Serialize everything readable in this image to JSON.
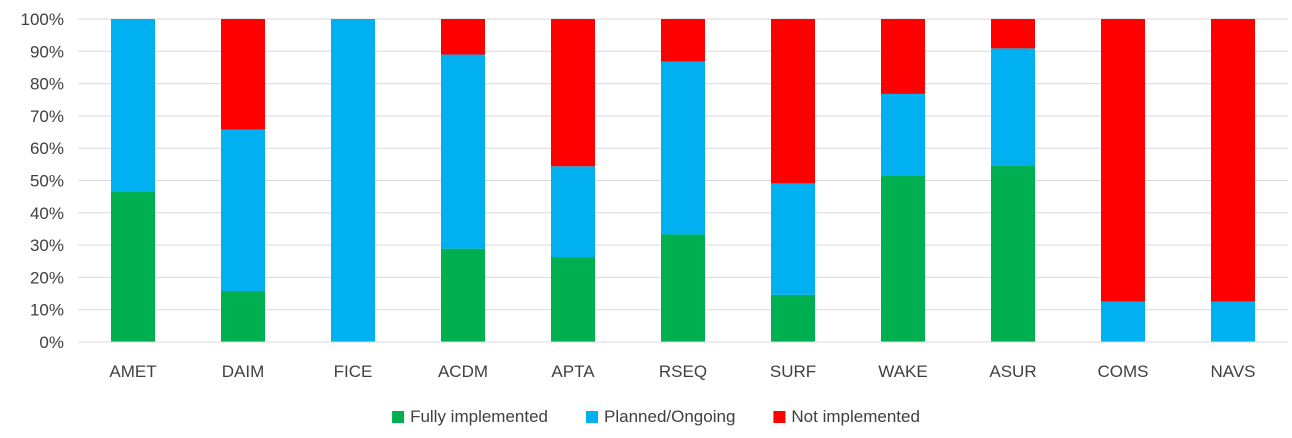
{
  "chart_data": {
    "type": "bar",
    "stacked": true,
    "percent_stacked": true,
    "categories": [
      "AMET",
      "DAIM",
      "FICE",
      "ACDM",
      "APTA",
      "RSEQ",
      "SURF",
      "WAKE",
      "ASUR",
      "COMS",
      "NAVS"
    ],
    "series": [
      {
        "name": "Fully implemented",
        "color": "#00b050",
        "values": [
          46.7,
          15.8,
          0,
          28.9,
          26.3,
          33.3,
          14.6,
          51.6,
          54.5,
          0,
          0
        ]
      },
      {
        "name": "Planned/Ongoing",
        "color": "#00b0f0",
        "values": [
          53.3,
          50.0,
          100,
          60.1,
          28.1,
          53.5,
          34.5,
          25.2,
          36.4,
          12.5,
          12.5
        ]
      },
      {
        "name": "Not implemented",
        "color": "#ff0000",
        "values": [
          0,
          34.2,
          0,
          11.0,
          45.6,
          13.2,
          50.9,
          23.2,
          9.1,
          87.5,
          87.5
        ]
      }
    ],
    "y_ticks": [
      "0%",
      "10%",
      "20%",
      "30%",
      "40%",
      "50%",
      "60%",
      "70%",
      "80%",
      "90%",
      "100%"
    ],
    "ylim": [
      0,
      100
    ],
    "title": "",
    "xlabel": "",
    "ylabel": "",
    "grid": true,
    "legend_position": "bottom-center"
  }
}
